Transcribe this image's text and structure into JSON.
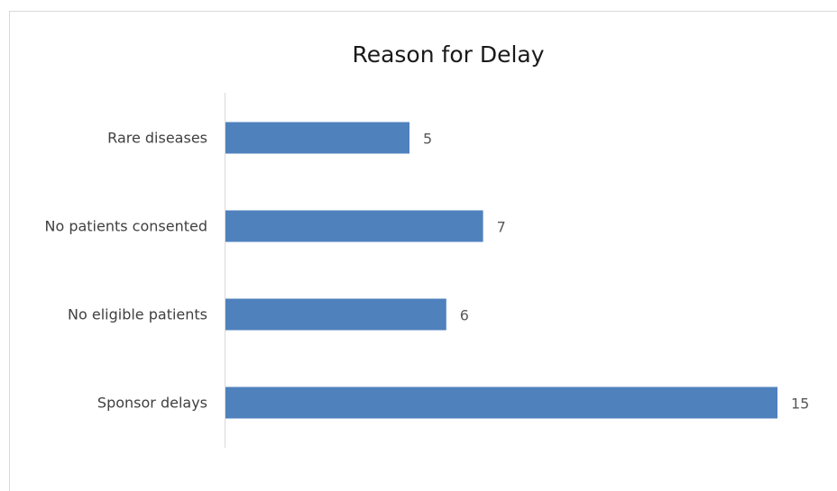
{
  "chart_data": {
    "type": "bar",
    "orientation": "horizontal",
    "title": "Reason for Delay",
    "categories": [
      "Rare diseases",
      "No patients consented",
      "No eligible patients",
      "Sponsor delays"
    ],
    "values": [
      5,
      7,
      6,
      15
    ],
    "color": "#4f81bd",
    "xlim": [
      0,
      15
    ]
  }
}
